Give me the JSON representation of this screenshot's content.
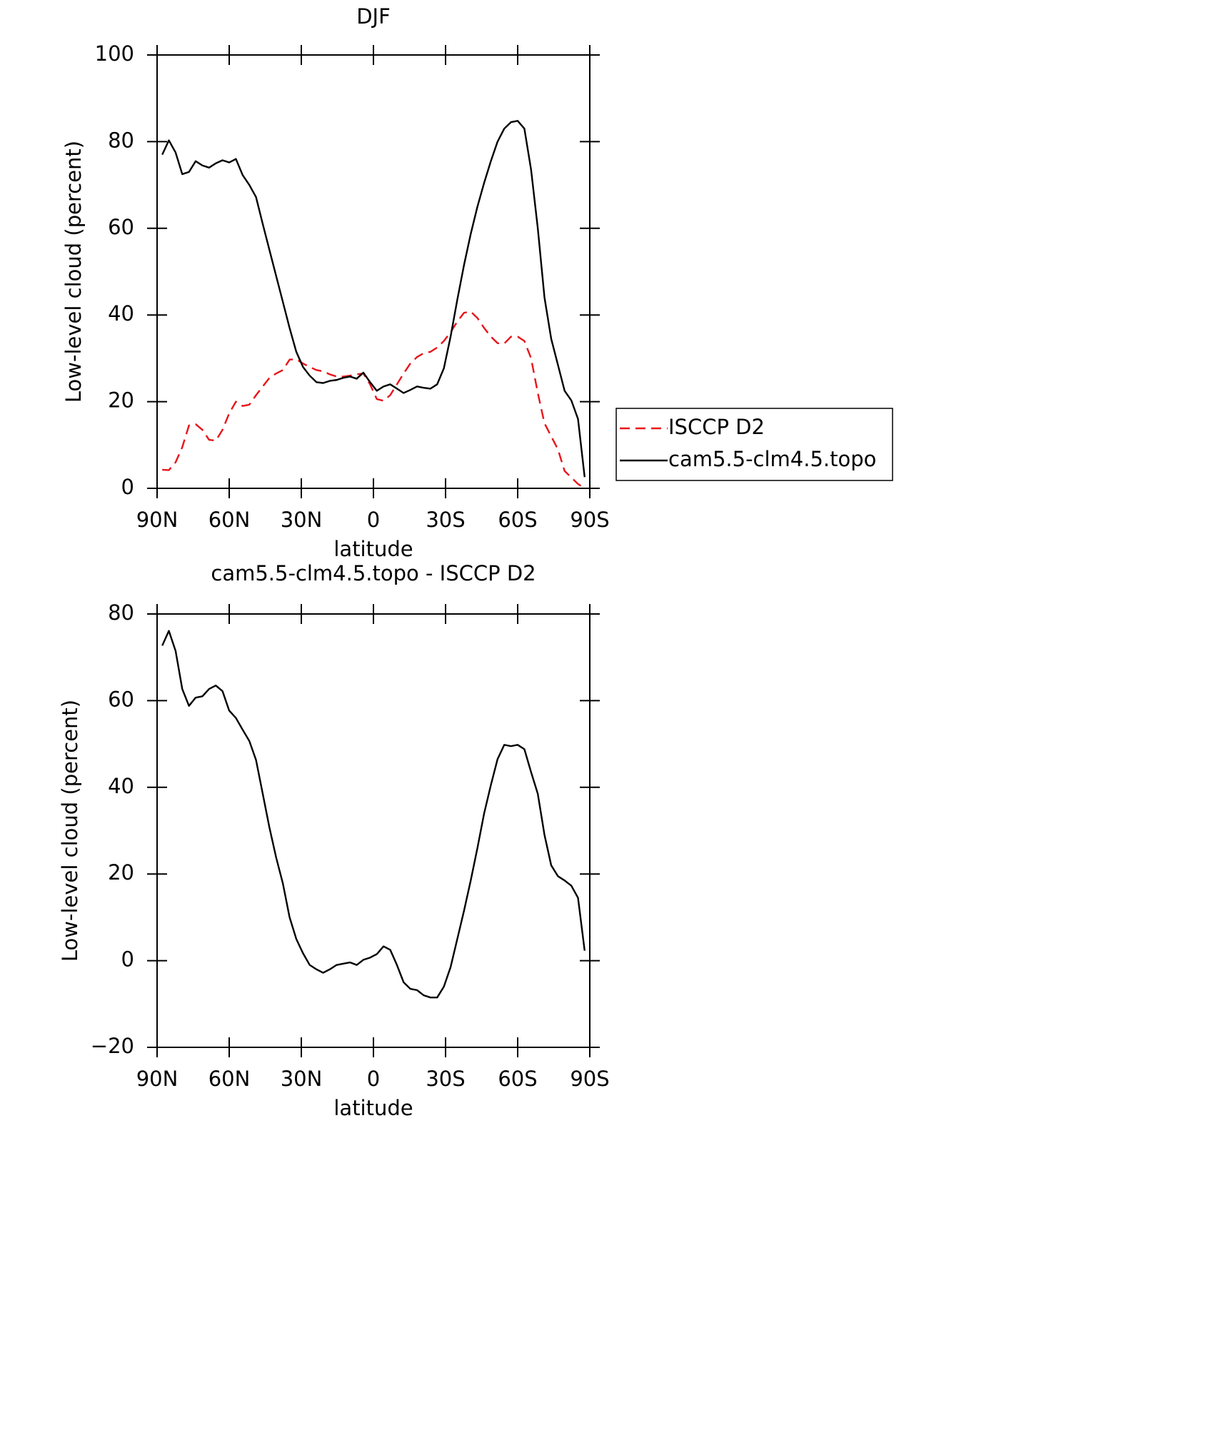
{
  "chart_data": [
    {
      "type": "line",
      "title": "DJF",
      "xlabel": "latitude",
      "ylabel": "Low-level cloud (percent)",
      "x": [
        87.86,
        85.1,
        82.31,
        79.53,
        76.74,
        73.95,
        71.16,
        68.37,
        65.58,
        62.79,
        60.0,
        57.21,
        54.42,
        51.63,
        48.84,
        46.05,
        43.26,
        40.47,
        37.67,
        34.88,
        32.09,
        29.3,
        26.51,
        23.72,
        20.93,
        18.14,
        15.35,
        12.56,
        9.77,
        6.98,
        4.19,
        1.4,
        -1.4,
        -4.19,
        -6.98,
        -9.77,
        -12.56,
        -15.35,
        -18.14,
        -20.93,
        -23.72,
        -26.51,
        -29.3,
        -32.09,
        -34.88,
        -37.67,
        -40.47,
        -43.26,
        -46.05,
        -48.84,
        -51.63,
        -54.42,
        -57.21,
        -60.0,
        -62.79,
        -65.58,
        -68.37,
        -71.16,
        -73.95,
        -76.74,
        -79.53,
        -82.31,
        -85.1,
        -87.86
      ],
      "series": [
        {
          "name": "ISCCP D2",
          "color": "#e8141b",
          "dash": true,
          "values": [
            4.3,
            4.2,
            6,
            9.5,
            14.5,
            14.8,
            13.5,
            11.2,
            11,
            13.5,
            17.3,
            20,
            19,
            19.3,
            21.5,
            23.5,
            25.5,
            26.5,
            27.3,
            29.7,
            29.8,
            28.8,
            28,
            27.3,
            27,
            26.3,
            25.8,
            25.8,
            26,
            26.3,
            26.5,
            24,
            20.6,
            20.2,
            21.5,
            24,
            26.5,
            28.8,
            30.3,
            31.2,
            31.5,
            32.5,
            34,
            36,
            38.5,
            40.5,
            40.8,
            39.3,
            37,
            35,
            33.5,
            33.4,
            35,
            35,
            34,
            30,
            22,
            15,
            12,
            9,
            4,
            2.5,
            1,
            0
          ]
        },
        {
          "name": "cam5.5-clm4.5.topo",
          "color": "#000000",
          "dash": false,
          "values": [
            77,
            80.3,
            77.5,
            72.5,
            73,
            75.5,
            74.5,
            74,
            75,
            75.7,
            75.2,
            76,
            72.3,
            70,
            67.2,
            61,
            55,
            49,
            43,
            37,
            31.5,
            28,
            26,
            24.5,
            24.3,
            24.8,
            25,
            25.5,
            25.8,
            25.3,
            26.7,
            24.5,
            22.5,
            23.5,
            24,
            23,
            22,
            22.7,
            23.5,
            23.2,
            23,
            24,
            27.7,
            35,
            43.5,
            51.5,
            58.7,
            65,
            70.5,
            75.5,
            80,
            83,
            84.5,
            84.8,
            83,
            73.5,
            60,
            44,
            34.5,
            28.5,
            22.5,
            20.3,
            16,
            2.6
          ]
        }
      ],
      "xlim": [
        90,
        -90
      ],
      "xticks": [
        {
          "value": 90,
          "label": "90N"
        },
        {
          "value": 60,
          "label": "60N"
        },
        {
          "value": 30,
          "label": "30N"
        },
        0,
        {
          "value": -30,
          "label": "30S"
        },
        {
          "value": -60,
          "label": "60S"
        },
        {
          "value": -90,
          "label": "90S"
        }
      ],
      "ylim": [
        0,
        100
      ],
      "yticks": [
        0,
        20,
        40,
        60,
        80,
        100
      ],
      "legend": "right"
    },
    {
      "type": "line",
      "title": "cam5.5-clm4.5.topo - ISCCP D2",
      "xlabel": "latitude",
      "ylabel": "Low-level cloud (percent)",
      "x": [
        87.86,
        85.1,
        82.31,
        79.53,
        76.74,
        73.95,
        71.16,
        68.37,
        65.58,
        62.79,
        60.0,
        57.21,
        54.42,
        51.63,
        48.84,
        46.05,
        43.26,
        40.47,
        37.67,
        34.88,
        32.09,
        29.3,
        26.51,
        23.72,
        20.93,
        18.14,
        15.35,
        12.56,
        9.77,
        6.98,
        4.19,
        1.4,
        -1.4,
        -4.19,
        -6.98,
        -9.77,
        -12.56,
        -15.35,
        -18.14,
        -20.93,
        -23.72,
        -26.51,
        -29.3,
        -32.09,
        -34.88,
        -37.67,
        -40.47,
        -43.26,
        -46.05,
        -48.84,
        -51.63,
        -54.42,
        -57.21,
        -60.0,
        -62.79,
        -65.58,
        -68.37,
        -71.16,
        -73.95,
        -76.74,
        -79.53,
        -82.31,
        -85.1,
        -87.86
      ],
      "series": [
        {
          "color": "#000000",
          "dash": false,
          "values": [
            72.7,
            76.1,
            71.5,
            62.7,
            58.8,
            60.7,
            61,
            62.7,
            63.5,
            62.2,
            57.7,
            56,
            53.3,
            50.7,
            46.3,
            38.5,
            30.7,
            23.8,
            17.8,
            10,
            5,
            1.7,
            -1,
            -2,
            -2.8,
            -2,
            -1,
            -0.7,
            -0.4,
            -1,
            0.2,
            0.7,
            1.5,
            3.3,
            2.5,
            -1,
            -5,
            -6.5,
            -6.8,
            -8,
            -8.5,
            -8.5,
            -6,
            -1.5,
            5,
            11.5,
            18.5,
            26,
            34,
            40.5,
            46.5,
            49.8,
            49.5,
            49.8,
            48.8,
            43.5,
            38.5,
            29,
            22,
            19.5,
            18.5,
            17.3,
            14.5,
            2.3
          ]
        }
      ],
      "xlim": [
        90,
        -90
      ],
      "xticks": [
        {
          "value": 90,
          "label": "90N"
        },
        {
          "value": 60,
          "label": "60N"
        },
        {
          "value": 30,
          "label": "30N"
        },
        0,
        {
          "value": -30,
          "label": "30S"
        },
        {
          "value": -60,
          "label": "60S"
        },
        {
          "value": -90,
          "label": "90S"
        }
      ],
      "ylim": [
        -20,
        80
      ],
      "yticks": [
        {
          "value": -20,
          "label": "−20"
        },
        0,
        20,
        40,
        60,
        80
      ]
    }
  ]
}
